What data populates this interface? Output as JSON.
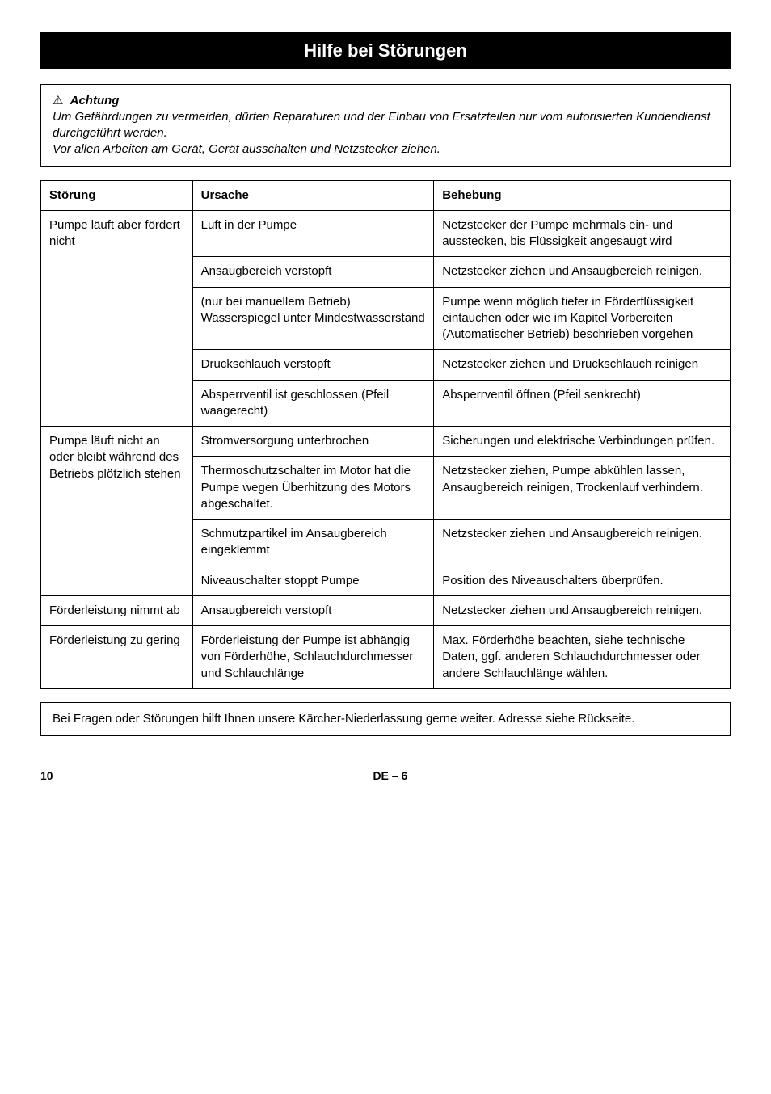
{
  "title": "Hilfe bei Störungen",
  "warning": {
    "icon": "⚠",
    "heading": "Achtung",
    "line1": "Um Gefährdungen zu vermeiden, dürfen Reparaturen und der Einbau von Ersatzteilen nur vom autorisierten Kundendienst durchgeführt werden.",
    "line2": "Vor allen Arbeiten am Gerät, Gerät ausschalten und Netzstecker ziehen."
  },
  "table": {
    "headers": {
      "c1": "Störung",
      "c2": "Ursache",
      "c3": "Behebung"
    },
    "groups": [
      {
        "stoerung": "Pumpe läuft aber fördert nicht",
        "rows": [
          {
            "ursache": "Luft in der Pumpe",
            "behebung": "Netzstecker der Pumpe mehrmals ein- und ausstecken, bis Flüssigkeit angesaugt wird"
          },
          {
            "ursache": "Ansaugbereich verstopft",
            "behebung": "Netzstecker ziehen und Ansaugbereich reinigen."
          },
          {
            "ursache": "(nur bei manuellem Betrieb) Wasserspiegel unter Mindestwasserstand",
            "behebung": "Pumpe wenn möglich tiefer in Förderflüssigkeit eintauchen oder wie im Kapitel Vorbereiten (Automatischer Betrieb) beschrieben vorgehen"
          },
          {
            "ursache": "Druckschlauch verstopft",
            "behebung": "Netzstecker ziehen und Druckschlauch reinigen"
          },
          {
            "ursache": "Absperrventil ist geschlossen (Pfeil waagerecht)",
            "behebung": "Absperrventil öffnen (Pfeil senkrecht)"
          }
        ]
      },
      {
        "stoerung": "Pumpe läuft nicht an oder bleibt während des Betriebs plötzlich stehen",
        "rows": [
          {
            "ursache": "Stromversorgung unterbrochen",
            "behebung": "Sicherungen und elektrische Verbindungen prüfen."
          },
          {
            "ursache": "Thermoschutzschalter im Motor hat die Pumpe wegen Überhitzung des Motors abgeschaltet.",
            "behebung": "Netzstecker ziehen, Pumpe abkühlen lassen, Ansaugbereich reinigen, Trockenlauf verhindern."
          },
          {
            "ursache": "Schmutzpartikel im Ansaugbereich eingeklemmt",
            "behebung": "Netzstecker ziehen und Ansaugbereich reinigen."
          },
          {
            "ursache": "Niveauschalter stoppt Pumpe",
            "behebung": "Position des Niveauschalters überprüfen."
          }
        ]
      },
      {
        "stoerung": "Förderleistung nimmt ab",
        "rows": [
          {
            "ursache": "Ansaugbereich verstopft",
            "behebung": "Netzstecker ziehen und Ansaugbereich reinigen."
          }
        ]
      },
      {
        "stoerung": "Förderleistung zu gering",
        "rows": [
          {
            "ursache": "Förderleistung der Pumpe ist abhängig von Förderhöhe, Schlauchdurchmesser und Schlauchlänge",
            "behebung": "Max. Förderhöhe beachten, siehe technische Daten, ggf. anderen Schlauchdurchmesser oder andere Schlauchlänge wählen."
          }
        ]
      }
    ]
  },
  "note": "Bei Fragen oder Störungen hilft Ihnen unsere Kärcher-Niederlassung gerne weiter. Adresse siehe Rückseite.",
  "footer": {
    "page": "10",
    "center": "DE – 6"
  }
}
